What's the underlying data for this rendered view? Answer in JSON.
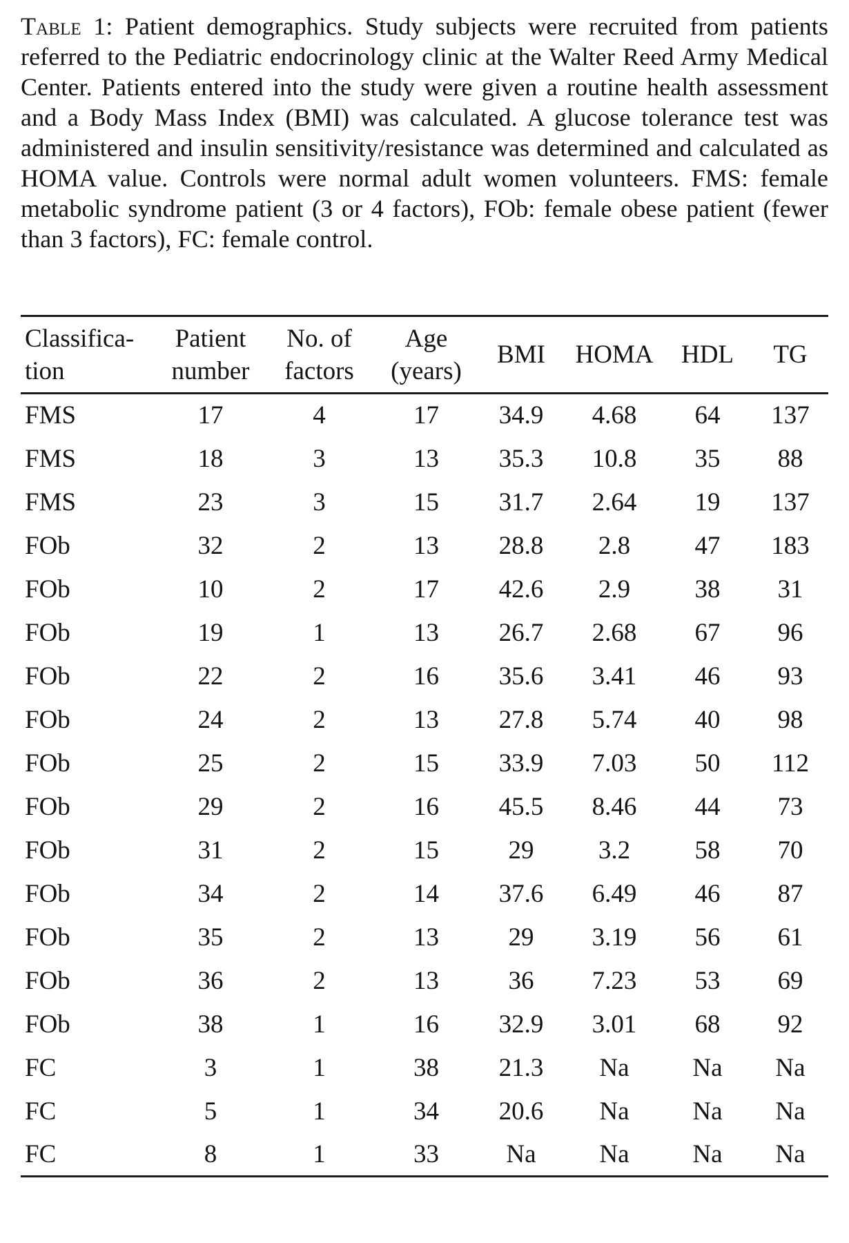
{
  "caption": {
    "label": "Table 1",
    "body": ": Patient demographics. Study subjects were recruited from patients referred to the Pediatric endocrinology clinic at the Walter Reed Army Medical Center. Patients entered into the study were given a routine health assessment and a Body Mass Index (BMI) was calculated. A glucose tolerance test was administered and insulin sensitivity/resistance was determined and calculated as HOMA value. Controls were normal adult women volunteers. FMS: female metabolic syndrome patient (3 or 4 factors), FOb: female obese patient (fewer than 3 factors), FC: female control."
  },
  "table": {
    "headers": [
      {
        "line1": "Classifica-",
        "line2": "tion"
      },
      {
        "line1": "Patient",
        "line2": "number"
      },
      {
        "line1": "No. of",
        "line2": "factors"
      },
      {
        "line1": "Age",
        "line2": "(years)"
      },
      {
        "line1": "BMI",
        "line2": ""
      },
      {
        "line1": "HOMA",
        "line2": ""
      },
      {
        "line1": "HDL",
        "line2": ""
      },
      {
        "line1": "TG",
        "line2": ""
      }
    ],
    "rows": [
      [
        "FMS",
        "17",
        "4",
        "17",
        "34.9",
        "4.68",
        "64",
        "137"
      ],
      [
        "FMS",
        "18",
        "3",
        "13",
        "35.3",
        "10.8",
        "35",
        "88"
      ],
      [
        "FMS",
        "23",
        "3",
        "15",
        "31.7",
        "2.64",
        "19",
        "137"
      ],
      [
        "FOb",
        "32",
        "2",
        "13",
        "28.8",
        "2.8",
        "47",
        "183"
      ],
      [
        "FOb",
        "10",
        "2",
        "17",
        "42.6",
        "2.9",
        "38",
        "31"
      ],
      [
        "FOb",
        "19",
        "1",
        "13",
        "26.7",
        "2.68",
        "67",
        "96"
      ],
      [
        "FOb",
        "22",
        "2",
        "16",
        "35.6",
        "3.41",
        "46",
        "93"
      ],
      [
        "FOb",
        "24",
        "2",
        "13",
        "27.8",
        "5.74",
        "40",
        "98"
      ],
      [
        "FOb",
        "25",
        "2",
        "15",
        "33.9",
        "7.03",
        "50",
        "112"
      ],
      [
        "FOb",
        "29",
        "2",
        "16",
        "45.5",
        "8.46",
        "44",
        "73"
      ],
      [
        "FOb",
        "31",
        "2",
        "15",
        "29",
        "3.2",
        "58",
        "70"
      ],
      [
        "FOb",
        "34",
        "2",
        "14",
        "37.6",
        "6.49",
        "46",
        "87"
      ],
      [
        "FOb",
        "35",
        "2",
        "13",
        "29",
        "3.19",
        "56",
        "61"
      ],
      [
        "FOb",
        "36",
        "2",
        "13",
        "36",
        "7.23",
        "53",
        "69"
      ],
      [
        "FOb",
        "38",
        "1",
        "16",
        "32.9",
        "3.01",
        "68",
        "92"
      ],
      [
        "FC",
        "3",
        "1",
        "38",
        "21.3",
        "Na",
        "Na",
        "Na"
      ],
      [
        "FC",
        "5",
        "1",
        "34",
        "20.6",
        "Na",
        "Na",
        "Na"
      ],
      [
        "FC",
        "8",
        "1",
        "33",
        "Na",
        "Na",
        "Na",
        "Na"
      ]
    ]
  }
}
